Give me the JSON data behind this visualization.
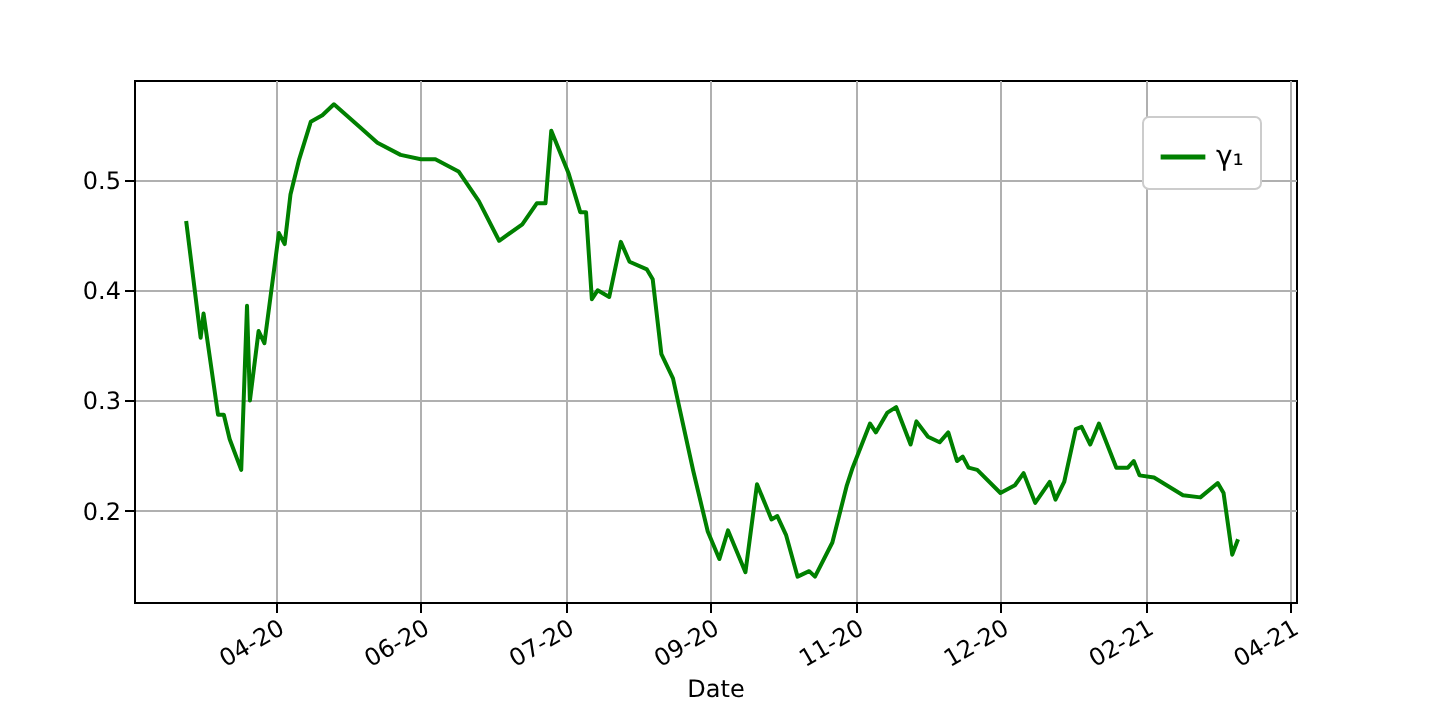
{
  "chart_data": {
    "type": "line",
    "xlabel": "Date",
    "x": [
      "2020-03-20",
      "2020-03-25",
      "2020-03-26",
      "2020-03-31",
      "2020-04-02",
      "2020-04-04",
      "2020-04-08",
      "2020-04-10",
      "2020-04-11",
      "2020-04-14",
      "2020-04-16",
      "2020-04-21",
      "2020-04-23",
      "2020-04-25",
      "2020-04-28",
      "2020-05-02",
      "2020-05-06",
      "2020-05-10",
      "2020-05-19",
      "2020-05-25",
      "2020-06-02",
      "2020-06-09",
      "2020-06-14",
      "2020-06-22",
      "2020-06-29",
      "2020-07-06",
      "2020-07-14",
      "2020-07-19",
      "2020-07-22",
      "2020-07-24",
      "2020-07-30",
      "2020-08-03",
      "2020-08-05",
      "2020-08-07",
      "2020-08-09",
      "2020-08-13",
      "2020-08-17",
      "2020-08-20",
      "2020-08-26",
      "2020-08-28",
      "2020-08-31",
      "2020-09-04",
      "2020-09-11",
      "2020-09-16",
      "2020-09-20",
      "2020-09-23",
      "2020-09-29",
      "2020-10-03",
      "2020-10-08",
      "2020-10-10",
      "2020-10-13",
      "2020-10-17",
      "2020-10-21",
      "2020-10-23",
      "2020-10-29",
      "2020-11-03",
      "2020-11-05",
      "2020-11-11",
      "2020-11-13",
      "2020-11-17",
      "2020-11-20",
      "2020-11-25",
      "2020-11-27",
      "2020-12-01",
      "2020-12-05",
      "2020-12-08",
      "2020-12-11",
      "2020-12-13",
      "2020-12-15",
      "2020-12-18",
      "2020-12-26",
      "2020-12-31",
      "2021-01-03",
      "2021-01-07",
      "2021-01-12",
      "2021-01-14",
      "2021-01-17",
      "2021-01-21",
      "2021-01-23",
      "2021-01-26",
      "2021-01-29",
      "2021-02-04",
      "2021-02-08",
      "2021-02-10",
      "2021-02-12",
      "2021-02-17",
      "2021-02-27",
      "2021-03-05",
      "2021-03-11",
      "2021-03-13",
      "2021-03-16",
      "2021-03-18"
    ],
    "series": [
      {
        "name": "γ₁",
        "color": "#008000",
        "values": [
          0.463,
          0.357,
          0.379,
          0.287,
          0.287,
          0.265,
          0.237,
          0.386,
          0.3,
          0.363,
          0.352,
          0.452,
          0.442,
          0.487,
          0.519,
          0.553,
          0.559,
          0.569,
          0.548,
          0.534,
          0.523,
          0.519,
          0.519,
          0.508,
          0.481,
          0.445,
          0.46,
          0.479,
          0.479,
          0.545,
          0.506,
          0.471,
          0.471,
          0.392,
          0.4,
          0.394,
          0.444,
          0.426,
          0.419,
          0.41,
          0.342,
          0.32,
          0.236,
          0.181,
          0.156,
          0.182,
          0.144,
          0.224,
          0.192,
          0.195,
          0.178,
          0.14,
          0.145,
          0.14,
          0.171,
          0.223,
          0.239,
          0.279,
          0.271,
          0.289,
          0.294,
          0.26,
          0.281,
          0.267,
          0.262,
          0.271,
          0.245,
          0.249,
          0.239,
          0.237,
          0.216,
          0.223,
          0.234,
          0.207,
          0.226,
          0.21,
          0.226,
          0.274,
          0.276,
          0.26,
          0.279,
          0.239,
          0.239,
          0.245,
          0.232,
          0.23,
          0.214,
          0.212,
          0.225,
          0.216,
          0.16,
          0.174
        ]
      }
    ],
    "xlim": [
      "2020-03-02",
      "2021-04-07"
    ],
    "xticks": [
      {
        "value": "2020-04-20",
        "label": "04-20"
      },
      {
        "value": "2020-06-09",
        "label": "06-20"
      },
      {
        "value": "2020-07-29",
        "label": "07-20"
      },
      {
        "value": "2020-09-17",
        "label": "09-20"
      },
      {
        "value": "2020-11-06",
        "label": "11-20"
      },
      {
        "value": "2020-12-26",
        "label": "12-20"
      },
      {
        "value": "2021-02-14",
        "label": "02-21"
      },
      {
        "value": "2021-04-05",
        "label": "04-21"
      }
    ],
    "ylim": [
      0.117,
      0.591
    ],
    "yticks": [
      0.2,
      0.3,
      0.4,
      0.5
    ],
    "grid": true,
    "legend": "top right",
    "line_style": "solid",
    "marker": "none"
  }
}
